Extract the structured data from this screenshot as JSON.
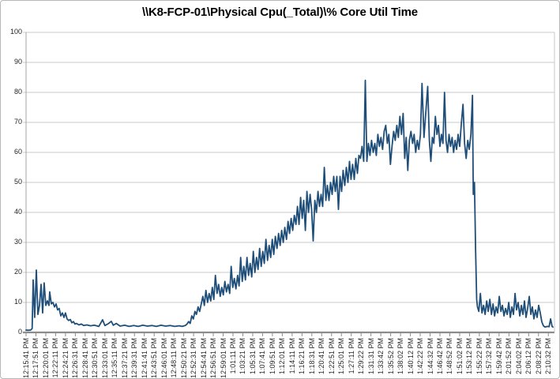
{
  "chart_data": {
    "type": "line",
    "title": "\\\\K8-FCP-01\\Physical Cpu(_Total)\\% Core Util Time",
    "series_name": "% Core Util Time",
    "xlabel": "",
    "ylabel": "",
    "ylim": [
      0,
      100
    ],
    "y_ticks": [
      0,
      10,
      20,
      30,
      40,
      50,
      60,
      70,
      80,
      90,
      100
    ],
    "grid": "horizontal",
    "legend": "none",
    "line_color": "#1F4E79",
    "colors": {
      "grid": "#C9C9C9",
      "axis": "#8C8C8C",
      "axis_light": "#A6A6A6",
      "text": "#262626",
      "frame": "#B7B7B7"
    },
    "x_tick_interval_seconds": 130,
    "t_span_seconds": 6950,
    "x_tick_labels": [
      "12:15:41 PM",
      "12:17:51 PM",
      "12:20:01 PM",
      "12:22:11 PM",
      "12:24:21 PM",
      "12:26:31 PM",
      "12:28:41 PM",
      "12:30:51 PM",
      "12:33:01 PM",
      "12:35:11 PM",
      "12:37:21 PM",
      "12:39:31 PM",
      "12:41:41 PM",
      "12:43:51 PM",
      "12:46:01 PM",
      "12:48:11 PM",
      "12:50:21 PM",
      "12:52:31 PM",
      "12:54:41 PM",
      "12:56:51 PM",
      "12:59:01 PM",
      "1:01:11 PM",
      "1:03:21 PM",
      "1:05:31 PM",
      "1:07:41 PM",
      "1:09:51 PM",
      "1:12:01 PM",
      "1:14:11 PM",
      "1:16:21 PM",
      "1:18:31 PM",
      "1:20:41 PM",
      "1:22:51 PM",
      "1:25:01 PM",
      "1:27:11 PM",
      "1:29:22 PM",
      "1:31:31 PM",
      "1:33:42 PM",
      "1:35:52 PM",
      "1:38:02 PM",
      "1:40:12 PM",
      "1:42:22 PM",
      "1:44:32 PM",
      "1:46:42 PM",
      "1:48:52 PM",
      "1:51:02 PM",
      "1:53:12 PM",
      "1:55:22 PM",
      "1:57:32 PM",
      "1:59:42 PM",
      "2:01:52 PM",
      "2:04:02 PM",
      "2:06:12 PM",
      "2:08:22 PM",
      "2:10:32 PM"
    ],
    "points": [
      [
        0,
        0.8
      ],
      [
        30,
        0.7
      ],
      [
        60,
        0.8
      ],
      [
        80,
        1.3
      ],
      [
        94,
        17.5
      ],
      [
        114,
        5
      ],
      [
        135,
        20.8
      ],
      [
        156,
        6
      ],
      [
        177,
        9
      ],
      [
        198,
        16
      ],
      [
        219,
        6.5
      ],
      [
        239,
        16.5
      ],
      [
        260,
        9
      ],
      [
        281,
        10.5
      ],
      [
        302,
        9
      ],
      [
        312,
        13.5
      ],
      [
        333,
        9.5
      ],
      [
        354,
        10
      ],
      [
        375,
        8.5
      ],
      [
        396,
        9.5
      ],
      [
        416,
        7.5
      ],
      [
        437,
        8
      ],
      [
        458,
        5.5
      ],
      [
        479,
        6.5
      ],
      [
        500,
        5
      ],
      [
        520,
        6.5
      ],
      [
        541,
        4.5
      ],
      [
        562,
        4
      ],
      [
        583,
        4.3
      ],
      [
        604,
        3.2
      ],
      [
        625,
        3.6
      ],
      [
        645,
        2.8
      ],
      [
        666,
        3
      ],
      [
        697,
        2.5
      ],
      [
        729,
        2.8
      ],
      [
        760,
        2.3
      ],
      [
        801,
        2.5
      ],
      [
        850,
        2.2
      ],
      [
        900,
        2.4
      ],
      [
        960,
        2
      ],
      [
        1010,
        4.2
      ],
      [
        1040,
        2.3
      ],
      [
        1090,
        3
      ],
      [
        1124,
        3.7
      ],
      [
        1150,
        2.4
      ],
      [
        1190,
        3
      ],
      [
        1240,
        2.1
      ],
      [
        1300,
        2.4
      ],
      [
        1360,
        2
      ],
      [
        1420,
        2.3
      ],
      [
        1480,
        2
      ],
      [
        1540,
        2.4
      ],
      [
        1600,
        2.1
      ],
      [
        1660,
        2.3
      ],
      [
        1720,
        2
      ],
      [
        1780,
        2.4
      ],
      [
        1840,
        2.1
      ],
      [
        1900,
        2.3
      ],
      [
        1960,
        2
      ],
      [
        2020,
        2.2
      ],
      [
        2060,
        2
      ],
      [
        2100,
        2.3
      ],
      [
        2124,
        2.8
      ],
      [
        2144,
        3.6
      ],
      [
        2165,
        3
      ],
      [
        2186,
        5.5
      ],
      [
        2207,
        4.5
      ],
      [
        2228,
        7
      ],
      [
        2248,
        6
      ],
      [
        2269,
        8.5
      ],
      [
        2290,
        7
      ],
      [
        2311,
        9.5
      ],
      [
        2332,
        12
      ],
      [
        2352,
        9
      ],
      [
        2373,
        14
      ],
      [
        2394,
        10
      ],
      [
        2415,
        13
      ],
      [
        2436,
        10.5
      ],
      [
        2457,
        15
      ],
      [
        2477,
        11
      ],
      [
        2498,
        19
      ],
      [
        2519,
        13
      ],
      [
        2540,
        16
      ],
      [
        2561,
        12
      ],
      [
        2582,
        15
      ],
      [
        2602,
        12.5
      ],
      [
        2623,
        17
      ],
      [
        2644,
        13.5
      ],
      [
        2665,
        16
      ],
      [
        2686,
        13
      ],
      [
        2706,
        22
      ],
      [
        2727,
        15
      ],
      [
        2748,
        18
      ],
      [
        2769,
        14.5
      ],
      [
        2790,
        19
      ],
      [
        2810,
        15.5
      ],
      [
        2831,
        25
      ],
      [
        2852,
        17
      ],
      [
        2873,
        22
      ],
      [
        2894,
        17.5
      ],
      [
        2914,
        25
      ],
      [
        2935,
        19
      ],
      [
        2956,
        23
      ],
      [
        2977,
        18.5
      ],
      [
        2998,
        27
      ],
      [
        3019,
        20
      ],
      [
        3040,
        25
      ],
      [
        3060,
        21
      ],
      [
        3081,
        28
      ],
      [
        3102,
        22
      ],
      [
        3123,
        27
      ],
      [
        3143,
        23
      ],
      [
        3164,
        31
      ],
      [
        3185,
        24
      ],
      [
        3206,
        29
      ],
      [
        3227,
        25
      ],
      [
        3248,
        31
      ],
      [
        3268,
        26
      ],
      [
        3289,
        32
      ],
      [
        3310,
        28
      ],
      [
        3331,
        33
      ],
      [
        3352,
        29
      ],
      [
        3372,
        34
      ],
      [
        3393,
        30
      ],
      [
        3414,
        35
      ],
      [
        3435,
        31
      ],
      [
        3456,
        37
      ],
      [
        3476,
        33
      ],
      [
        3497,
        38
      ],
      [
        3518,
        34
      ],
      [
        3539,
        39
      ],
      [
        3560,
        36
      ],
      [
        3580,
        42
      ],
      [
        3601,
        36
      ],
      [
        3622,
        45
      ],
      [
        3643,
        38
      ],
      [
        3663,
        44
      ],
      [
        3684,
        34
      ],
      [
        3705,
        47
      ],
      [
        3726,
        40
      ],
      [
        3747,
        46
      ],
      [
        3767,
        41
      ],
      [
        3788,
        30.5
      ],
      [
        3809,
        44
      ],
      [
        3830,
        40
      ],
      [
        3851,
        47
      ],
      [
        3871,
        42
      ],
      [
        3892,
        46
      ],
      [
        3913,
        42
      ],
      [
        3934,
        55
      ],
      [
        3955,
        44
      ],
      [
        3975,
        49
      ],
      [
        3996,
        44
      ],
      [
        4017,
        50
      ],
      [
        4038,
        46
      ],
      [
        4059,
        52
      ],
      [
        4079,
        47
      ],
      [
        4100,
        52
      ],
      [
        4121,
        41
      ],
      [
        4142,
        52
      ],
      [
        4163,
        47
      ],
      [
        4183,
        54
      ],
      [
        4204,
        49
      ],
      [
        4225,
        55
      ],
      [
        4246,
        50
      ],
      [
        4267,
        57
      ],
      [
        4287,
        51
      ],
      [
        4308,
        56
      ],
      [
        4329,
        51
      ],
      [
        4350,
        58
      ],
      [
        4371,
        53
      ],
      [
        4391,
        59
      ],
      [
        4412,
        58
      ],
      [
        4433,
        62
      ],
      [
        4454,
        57
      ],
      [
        4475,
        84
      ],
      [
        4496,
        57
      ],
      [
        4516,
        63
      ],
      [
        4537,
        59
      ],
      [
        4558,
        64
      ],
      [
        4579,
        60
      ],
      [
        4600,
        63
      ],
      [
        4620,
        59
      ],
      [
        4641,
        66
      ],
      [
        4662,
        62
      ],
      [
        4682,
        65
      ],
      [
        4703,
        61
      ],
      [
        4724,
        67
      ],
      [
        4745,
        69
      ],
      [
        4766,
        63
      ],
      [
        4786,
        66
      ],
      [
        4807,
        56
      ],
      [
        4828,
        62
      ],
      [
        4849,
        67
      ],
      [
        4870,
        64
      ],
      [
        4891,
        69
      ],
      [
        4911,
        65
      ],
      [
        4932,
        72
      ],
      [
        4953,
        66
      ],
      [
        4974,
        73
      ],
      [
        4995,
        58
      ],
      [
        5015,
        65
      ],
      [
        5036,
        54
      ],
      [
        5057,
        64
      ],
      [
        5078,
        67
      ],
      [
        5099,
        63
      ],
      [
        5119,
        66
      ],
      [
        5140,
        60
      ],
      [
        5161,
        64
      ],
      [
        5182,
        61
      ],
      [
        5203,
        66
      ],
      [
        5223,
        83
      ],
      [
        5250,
        65
      ],
      [
        5298,
        82
      ],
      [
        5320,
        64
      ],
      [
        5340,
        57
      ],
      [
        5360,
        65
      ],
      [
        5380,
        63
      ],
      [
        5400,
        72
      ],
      [
        5420,
        66
      ],
      [
        5440,
        69
      ],
      [
        5460,
        62
      ],
      [
        5480,
        66
      ],
      [
        5500,
        63
      ],
      [
        5520,
        80
      ],
      [
        5540,
        64
      ],
      [
        5560,
        60
      ],
      [
        5580,
        66
      ],
      [
        5600,
        62
      ],
      [
        5620,
        65
      ],
      [
        5640,
        60
      ],
      [
        5660,
        64
      ],
      [
        5680,
        61
      ],
      [
        5700,
        66
      ],
      [
        5720,
        62
      ],
      [
        5743,
        70
      ],
      [
        5764,
        76
      ],
      [
        5785,
        63
      ],
      [
        5806,
        58
      ],
      [
        5827,
        64
      ],
      [
        5847,
        61
      ],
      [
        5868,
        66
      ],
      [
        5889,
        79
      ],
      [
        5900,
        46
      ],
      [
        5915,
        50
      ],
      [
        5930,
        28
      ],
      [
        5945,
        11
      ],
      [
        5955,
        8.5
      ],
      [
        5973,
        7
      ],
      [
        5993,
        13
      ],
      [
        6014,
        6.5
      ],
      [
        6035,
        9
      ],
      [
        6056,
        6
      ],
      [
        6077,
        10.5
      ],
      [
        6097,
        7
      ],
      [
        6118,
        11
      ],
      [
        6139,
        6
      ],
      [
        6160,
        9.5
      ],
      [
        6181,
        5.5
      ],
      [
        6201,
        8.5
      ],
      [
        6222,
        6.5
      ],
      [
        6243,
        12
      ],
      [
        6264,
        7
      ],
      [
        6284,
        9
      ],
      [
        6305,
        5.5
      ],
      [
        6326,
        8
      ],
      [
        6347,
        6
      ],
      [
        6368,
        10
      ],
      [
        6388,
        5
      ],
      [
        6409,
        8.5
      ],
      [
        6430,
        6
      ],
      [
        6451,
        13
      ],
      [
        6471,
        7.5
      ],
      [
        6492,
        10
      ],
      [
        6513,
        5.5
      ],
      [
        6534,
        9
      ],
      [
        6555,
        6
      ],
      [
        6575,
        10.5
      ],
      [
        6596,
        5
      ],
      [
        6617,
        8
      ],
      [
        6638,
        12
      ],
      [
        6659,
        6
      ],
      [
        6679,
        8.5
      ],
      [
        6700,
        4.5
      ],
      [
        6721,
        7.5
      ],
      [
        6742,
        5
      ],
      [
        6762,
        9
      ],
      [
        6783,
        6.5
      ],
      [
        6804,
        3.5
      ],
      [
        6825,
        2.2
      ],
      [
        6845,
        1.8
      ],
      [
        6877,
        2
      ],
      [
        6900,
        1.9
      ],
      [
        6920,
        4.5
      ],
      [
        6940,
        2
      ],
      [
        6950,
        1.8
      ]
    ]
  }
}
